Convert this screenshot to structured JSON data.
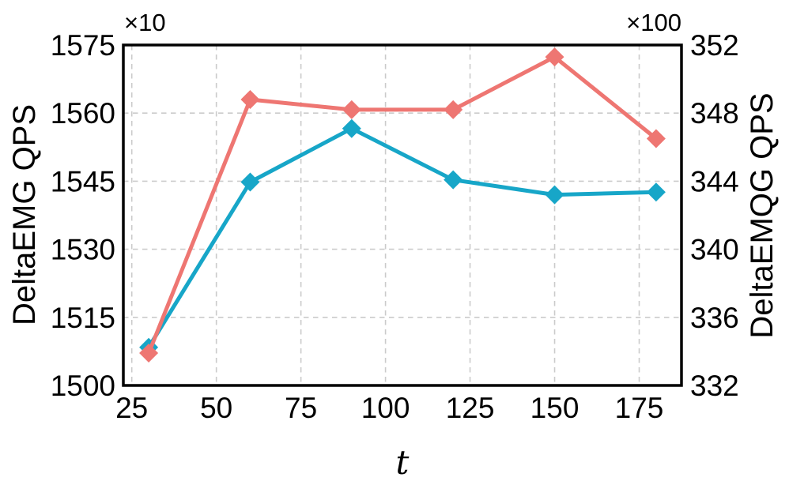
{
  "chart_data": {
    "type": "line",
    "x": [
      30,
      60,
      90,
      120,
      150,
      180
    ],
    "series": [
      {
        "name": "DeltaEMG QPS",
        "axis": "left",
        "color": "#17a6c8",
        "marker": "diamond",
        "values": [
          1508.4,
          1544.8,
          1556.6,
          1545.3,
          1542.0,
          1542.6
        ]
      },
      {
        "name": "DeltaEMQG QPS",
        "axis": "right",
        "color": "#ee7672",
        "marker": "diamond",
        "values": [
          333.9,
          348.8,
          348.2,
          348.2,
          351.3,
          346.5
        ]
      }
    ],
    "xlabel": "t",
    "x_ticks": [
      25,
      50,
      75,
      100,
      125,
      150,
      175
    ],
    "xlim": [
      22.5,
      187.5
    ],
    "left_axis": {
      "label": "DeltaEMG QPS",
      "offset_text": "×10",
      "ticks": [
        1500,
        1515,
        1530,
        1545,
        1560,
        1575
      ],
      "lim": [
        1500,
        1575
      ]
    },
    "right_axis": {
      "label": "DeltaEMQG QPS",
      "offset_text": "×100",
      "ticks": [
        332,
        336,
        340,
        344,
        348,
        352
      ],
      "lim": [
        332,
        352
      ]
    },
    "grid": true,
    "legend_position": "none"
  },
  "style": {
    "grid_color": "#cbcbcb",
    "spine_color": "#000000",
    "text_color": "#000000",
    "background": "#ffffff"
  }
}
